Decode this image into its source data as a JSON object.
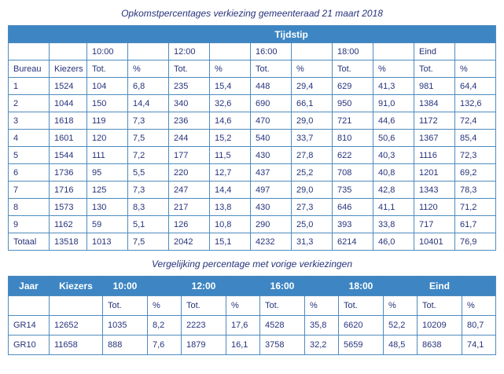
{
  "page": {
    "title1": "Opkomstpercentages verkiezing gemeenteraad 21 maart 2018",
    "title2": "Vergelijking percentage met vorige verkiezingen"
  },
  "colors": {
    "header_bg": "#3E86C3",
    "border": "#4E8BBE",
    "text": "#26337B",
    "header_text": "#FFFFFF"
  },
  "table1": {
    "tijdstip_label": "Tijdstip",
    "time_headers": [
      "10:00",
      "12:00",
      "16:00",
      "18:00",
      "Eind"
    ],
    "col_headers": {
      "bureau": "Bureau",
      "kiezers": "Kiezers",
      "tot": "Tot.",
      "pct": "%"
    },
    "rows": [
      {
        "bureau": "1",
        "kiezers": "1524",
        "values": [
          "104",
          "6,8",
          "235",
          "15,4",
          "448",
          "29,4",
          "629",
          "41,3",
          "981",
          "64,4"
        ]
      },
      {
        "bureau": "2",
        "kiezers": "1044",
        "values": [
          "150",
          "14,4",
          "340",
          "32,6",
          "690",
          "66,1",
          "950",
          "91,0",
          "1384",
          "132,6"
        ]
      },
      {
        "bureau": "3",
        "kiezers": "1618",
        "values": [
          "119",
          "7,3",
          "236",
          "14,6",
          "470",
          "29,0",
          "721",
          "44,6",
          "1172",
          "72,4"
        ]
      },
      {
        "bureau": "4",
        "kiezers": "1601",
        "values": [
          "120",
          "7,5",
          "244",
          "15,2",
          "540",
          "33,7",
          "810",
          "50,6",
          "1367",
          "85,4"
        ]
      },
      {
        "bureau": "5",
        "kiezers": "1544",
        "values": [
          "111",
          "7,2",
          "177",
          "11,5",
          "430",
          "27,8",
          "622",
          "40,3",
          "1116",
          "72,3"
        ]
      },
      {
        "bureau": "6",
        "kiezers": "1736",
        "values": [
          "95",
          "5,5",
          "220",
          "12,7",
          "437",
          "25,2",
          "708",
          "40,8",
          "1201",
          "69,2"
        ]
      },
      {
        "bureau": "7",
        "kiezers": "1716",
        "values": [
          "125",
          "7,3",
          "247",
          "14,4",
          "497",
          "29,0",
          "735",
          "42,8",
          "1343",
          "78,3"
        ]
      },
      {
        "bureau": "8",
        "kiezers": "1573",
        "values": [
          "130",
          "8,3",
          "217",
          "13,8",
          "430",
          "27,3",
          "646",
          "41,1",
          "1120",
          "71,2"
        ]
      },
      {
        "bureau": "9",
        "kiezers": "1162",
        "values": [
          "59",
          "5,1",
          "126",
          "10,8",
          "290",
          "25,0",
          "393",
          "33,8",
          "717",
          "61,7"
        ]
      },
      {
        "bureau": "Totaal",
        "kiezers": "13518",
        "values": [
          "1013",
          "7,5",
          "2042",
          "15,1",
          "4232",
          "31,3",
          "6214",
          "46,0",
          "10401",
          "76,9"
        ]
      }
    ]
  },
  "table2": {
    "jaar_label": "Jaar",
    "kiezers_label": "Kiezers",
    "time_headers": [
      "10:00",
      "12:00",
      "16:00",
      "18:00",
      "Eind"
    ],
    "sub_headers": {
      "tot": "Tot.",
      "pct": "%"
    },
    "rows": [
      {
        "jaar": "GR14",
        "kiezers": "12652",
        "values": [
          "1035",
          "8,2",
          "2223",
          "17,6",
          "4528",
          "35,8",
          "6620",
          "52,2",
          "10209",
          "80,7"
        ]
      },
      {
        "jaar": "GR10",
        "kiezers": "11658",
        "values": [
          "888",
          "7,6",
          "1879",
          "16,1",
          "3758",
          "32,2",
          "5659",
          "48,5",
          "8638",
          "74,1"
        ]
      }
    ]
  }
}
